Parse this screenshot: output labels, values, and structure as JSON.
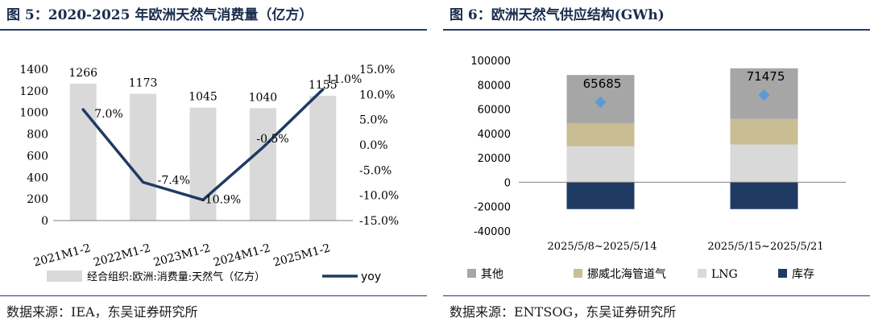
{
  "left_panel": {
    "title": "图 5：2020-2025 年欧洲天然气消费量（亿方）",
    "source": "数据来源：IEA，东吴证券研究所"
  },
  "right_panel": {
    "title": "图 6：欧洲天然气供应结构(GWh)",
    "source": "数据来源：ENTSOG，东吴证券研究所"
  },
  "chart_data": [
    {
      "type": "bar",
      "title": "",
      "categories": [
        "2021M1-2",
        "2022M1-2",
        "2023M1-2",
        "2024M1-2",
        "2025M1-2"
      ],
      "series": [
        {
          "name": "经合组织:欧洲:消费量:天然气（亿方）",
          "axis": "left",
          "chart": "bar",
          "color": "#d9d9d9",
          "values": [
            1266,
            1173,
            1045,
            1040,
            1155
          ],
          "labels": [
            "1266",
            "1173",
            "1045",
            "1040",
            "1155"
          ]
        },
        {
          "name": "yoy",
          "axis": "right",
          "chart": "line",
          "color": "#1f3b63",
          "values": [
            7.0,
            -7.4,
            -10.9,
            -0.5,
            11.0
          ],
          "labels": [
            "7.0%",
            "-7.4%",
            "-10.9%",
            "-0.5%",
            "11.0%"
          ]
        }
      ],
      "y_left": {
        "min": 0,
        "max": 1400,
        "ticks": [
          "0",
          "200",
          "400",
          "600",
          "800",
          "1000",
          "1200",
          "1400"
        ]
      },
      "y_right": {
        "min": -15,
        "max": 15,
        "ticks": [
          "-15.0%",
          "-10.0%",
          "-5.0%",
          "0.0%",
          "5.0%",
          "10.0%",
          "15.0%"
        ]
      },
      "legend_position": "bottom"
    },
    {
      "type": "bar",
      "stacked": true,
      "title": "",
      "categories": [
        "2025/5/8~2025/5/14",
        "2025/5/15~2025/5/21"
      ],
      "series": [
        {
          "name": "库存",
          "color": "#1f3b63",
          "values": [
            -22000,
            -22000
          ]
        },
        {
          "name": "LNG",
          "color": "#d9d9d9",
          "values": [
            29500,
            31000
          ]
        },
        {
          "name": "挪威北海管道气",
          "color": "#c9bd94",
          "values": [
            19000,
            21000
          ]
        },
        {
          "name": "其他",
          "color": "#a6a6a6",
          "values": [
            39500,
            41500
          ]
        }
      ],
      "totals": {
        "values": [
          65685,
          71475
        ],
        "labels": [
          "65685",
          "71475"
        ],
        "marker_color": "#5b9bd5"
      },
      "y": {
        "min": -40000,
        "max": 100000,
        "ticks": [
          "-40000",
          "-20000",
          "0",
          "20000",
          "40000",
          "60000",
          "80000",
          "100000"
        ]
      },
      "legend_order": [
        "其他",
        "挪威北海管道气",
        "LNG",
        "库存"
      ],
      "legend_position": "bottom"
    }
  ]
}
